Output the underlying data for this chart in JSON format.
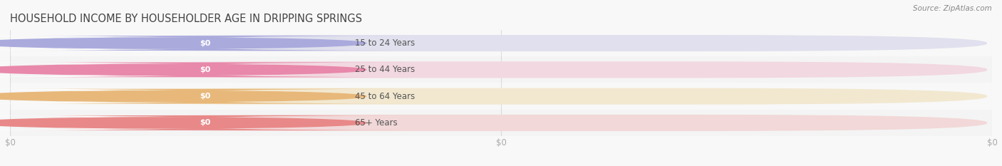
{
  "title": "HOUSEHOLD INCOME BY HOUSEHOLDER AGE IN DRIPPING SPRINGS",
  "source": "Source: ZipAtlas.com",
  "categories": [
    "15 to 24 Years",
    "25 to 44 Years",
    "45 to 64 Years",
    "65+ Years"
  ],
  "values": [
    0,
    0,
    0,
    0
  ],
  "bar_colors": [
    "#aaaadd",
    "#e888aa",
    "#e8b87a",
    "#e88888"
  ],
  "bar_bg_colors": [
    "#e0e0ee",
    "#f2d8e0",
    "#f2e8d0",
    "#f2d8d8"
  ],
  "white_pill_color": "#ffffff",
  "tick_label_color": "#aaaaaa",
  "title_color": "#444444",
  "source_color": "#888888",
  "background_color": "#f8f8f8",
  "bar_row_bg": [
    "#f0f0f0",
    "#f8f8f8",
    "#f0f0f0",
    "#f8f8f8"
  ]
}
